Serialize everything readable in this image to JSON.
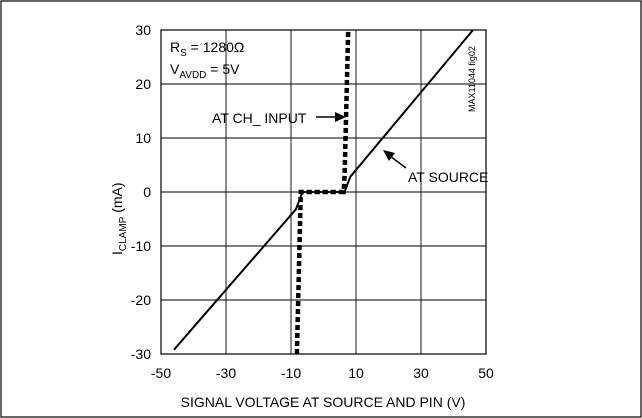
{
  "chart_data": {
    "type": "line",
    "xlabel": "SIGNAL VOLTAGE AT SOURCE AND PIN (V)",
    "ylabel_main": "I",
    "ylabel_sub": "CLAMP",
    "ylabel_unit": " (mA)",
    "xlim": [
      -50,
      50
    ],
    "ylim": [
      -30,
      30
    ],
    "x_ticks": [
      -50,
      -30,
      -10,
      10,
      30,
      50
    ],
    "y_ticks": [
      30,
      20,
      10,
      0,
      -10,
      -20,
      -30
    ],
    "x_tick_labels": [
      "-50",
      "-30",
      "-10",
      "10",
      "30",
      "50"
    ],
    "y_tick_labels": [
      "30",
      "20",
      "10",
      "0",
      "-10",
      "-20",
      "-30"
    ],
    "grid": true,
    "params": {
      "rs_main": "R",
      "rs_sub": "S",
      "rs_value": " = 1280Ω",
      "vavdd_main": "V",
      "vavdd_sub": "AVDD",
      "vavdd_value": " = 5V"
    },
    "watermark": "MAX11044 fig02",
    "series": [
      {
        "name": "AT SOURCE",
        "style": "solid",
        "points": [
          [
            -46,
            -29.2
          ],
          [
            -8.5,
            -3.2
          ],
          [
            -6.5,
            0
          ],
          [
            6.5,
            0
          ],
          [
            8.2,
            2.8
          ],
          [
            46,
            30
          ]
        ]
      },
      {
        "name": "AT CH_ INPUT",
        "style": "dashed",
        "points": [
          [
            -8.2,
            -30
          ],
          [
            -7.1,
            -3
          ],
          [
            -7,
            0
          ],
          [
            6.2,
            0
          ],
          [
            6.5,
            3
          ],
          [
            7.6,
            30
          ]
        ]
      }
    ],
    "annotations": [
      {
        "text": "AT CH_ INPUT",
        "target": [
          6.5,
          14.5
        ]
      },
      {
        "text": "AT SOURCE",
        "target": [
          11.5,
          7.8
        ]
      }
    ]
  }
}
